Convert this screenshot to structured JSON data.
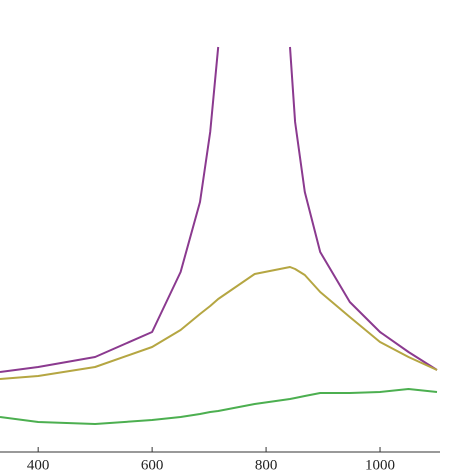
{
  "chart_data": {
    "type": "line",
    "x": [
      333,
      400,
      500,
      600,
      650,
      684,
      702,
      716,
      780,
      842,
      851,
      868,
      895,
      947,
      1000,
      1050,
      1100
    ],
    "series": [
      {
        "color": "#8b3a8f",
        "values": [
          80,
          85,
          95,
          120,
          180,
          250,
          320,
          405,
          null,
          405,
          330,
          260,
          200,
          150,
          120,
          100,
          82
        ]
      },
      {
        "color": "#b5a642",
        "values": [
          73,
          76,
          85,
          105,
          122,
          138,
          146,
          153,
          178,
          185,
          183,
          177,
          160,
          135,
          110,
          95,
          82
        ]
      },
      {
        "color": "#4caf50",
        "values": [
          35,
          30,
          28,
          32,
          35,
          38,
          40,
          41,
          48,
          53,
          54,
          56,
          59,
          59,
          60,
          63,
          60
        ]
      }
    ],
    "xlim": [
      333,
      1100
    ],
    "ylim": [
      0,
      450
    ],
    "xticks": [
      400,
      600,
      800,
      1000
    ]
  }
}
